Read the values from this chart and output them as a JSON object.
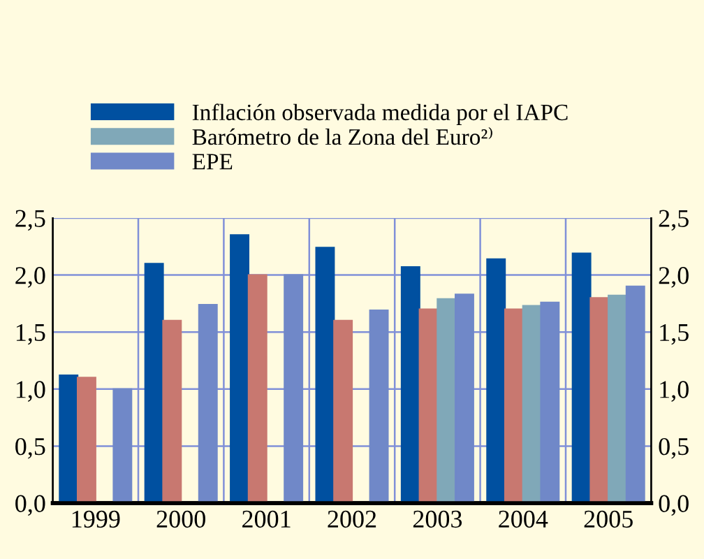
{
  "chart_data": {
    "type": "bar",
    "categories": [
      "1999",
      "2000",
      "2001",
      "2002",
      "2003",
      "2004",
      "2005"
    ],
    "series": [
      {
        "name": "Inflación observada medida por el IAPC",
        "color": "#0050a0",
        "values": [
          1.12,
          2.1,
          2.35,
          2.24,
          2.07,
          2.14,
          2.19
        ]
      },
      {
        "color": "#c87870",
        "values": [
          1.1,
          1.6,
          2.0,
          1.6,
          1.7,
          1.7,
          1.8
        ]
      },
      {
        "name": "Barómetro de la Zona del Euro²⁾",
        "color": "#80a8b8",
        "values": [
          null,
          null,
          null,
          null,
          1.79,
          1.73,
          1.82
        ]
      },
      {
        "name": "EPE",
        "color": "#7088c8",
        "values": [
          1.0,
          1.74,
          2.0,
          1.69,
          1.83,
          1.76,
          1.9
        ]
      }
    ],
    "ylim": [
      0,
      2.5
    ],
    "yticks": [
      {
        "value": 0,
        "label": "0,0"
      },
      {
        "value": 0.5,
        "label": "0,5"
      },
      {
        "value": 1,
        "label": "1,0"
      },
      {
        "value": 1.5,
        "label": "1,5"
      },
      {
        "value": 2,
        "label": "2,0"
      },
      {
        "value": 2.5,
        "label": "2,5"
      }
    ],
    "y2lim": [
      0,
      2.5
    ],
    "y2ticks": [
      {
        "value": 0,
        "label": "0,0"
      },
      {
        "value": 0.5,
        "label": "0,5"
      },
      {
        "value": 1,
        "label": "1,0"
      },
      {
        "value": 1.5,
        "label": "1,5"
      },
      {
        "value": 2,
        "label": "2,0"
      },
      {
        "value": 2.5,
        "label": "2,5"
      }
    ],
    "grid": true,
    "legend": "top left"
  }
}
